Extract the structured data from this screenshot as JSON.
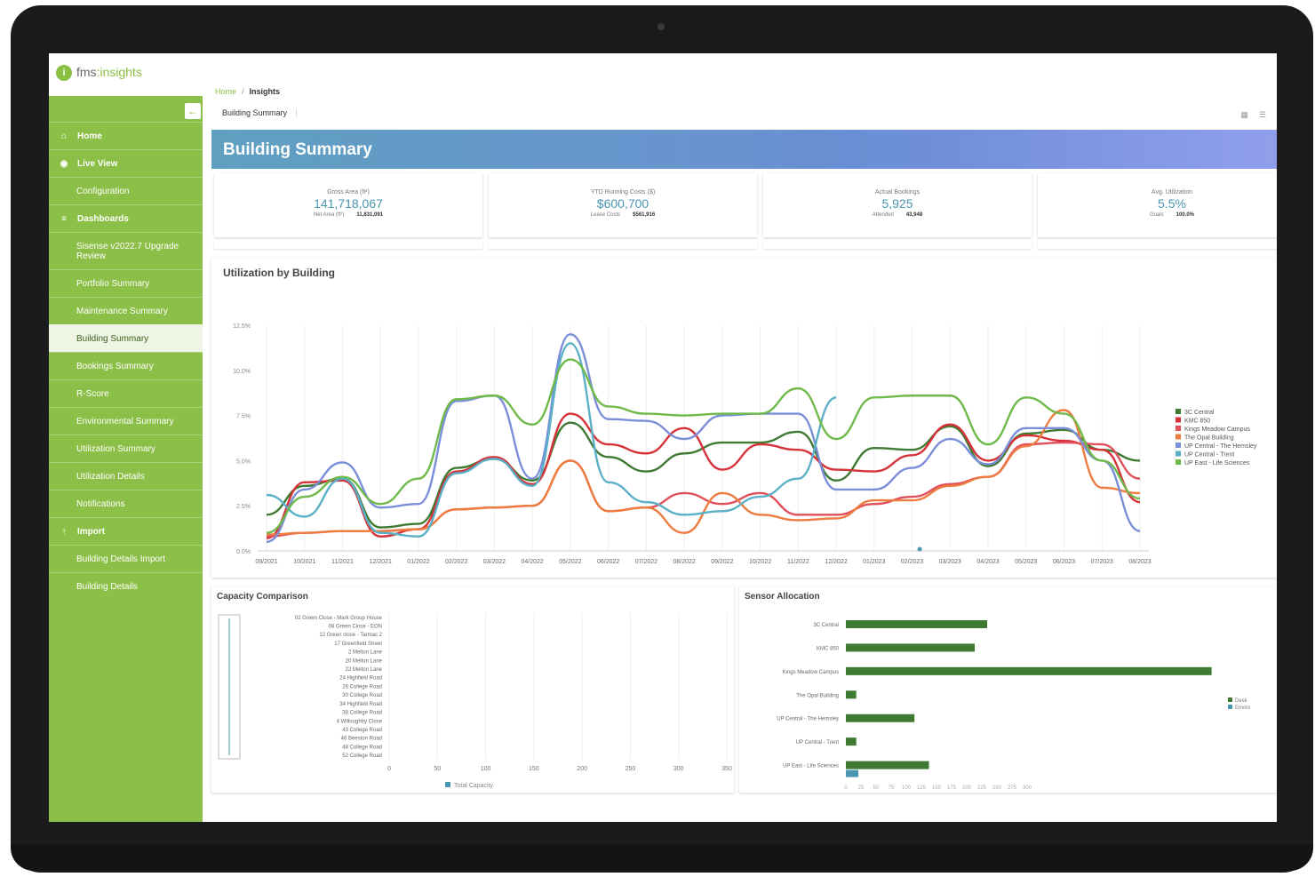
{
  "app": {
    "logo_text": "fms",
    "logo_accent": ":insights",
    "logo_mark": "i"
  },
  "sidebar": {
    "collapse_icon": "arrow-left-icon",
    "items": [
      {
        "label": "Home",
        "icon": "home-icon",
        "level": "top"
      },
      {
        "label": "Live View",
        "icon": "location-pin-icon",
        "level": "top"
      },
      {
        "label": "Configuration",
        "level": "sub"
      },
      {
        "label": "Dashboards",
        "icon": "chart-icon",
        "level": "top"
      },
      {
        "label": "Sisense v2022.7 Upgrade Review",
        "level": "sub"
      },
      {
        "label": "Portfolio Summary",
        "level": "sub"
      },
      {
        "label": "Maintenance Summary",
        "level": "sub"
      },
      {
        "label": "Building Summary",
        "level": "sub",
        "active": true
      },
      {
        "label": "Bookings Summary",
        "level": "sub"
      },
      {
        "label": "R-Score",
        "level": "sub"
      },
      {
        "label": "Environmental Summary",
        "level": "sub"
      },
      {
        "label": "Utilization Summary",
        "level": "sub"
      },
      {
        "label": "Utilization Details",
        "level": "sub"
      },
      {
        "label": "Notifications",
        "level": "sub"
      },
      {
        "label": "Import",
        "icon": "upload-icon",
        "level": "top"
      },
      {
        "label": "Building Details Import",
        "level": "sub"
      },
      {
        "label": "Building Details",
        "level": "sub"
      }
    ]
  },
  "breadcrumb": {
    "home": "Home",
    "separator": "/",
    "current": "Insights"
  },
  "tab": {
    "label": "Building Summary"
  },
  "banner": {
    "title": "Building Summary"
  },
  "kpis": [
    {
      "label": "Gross Area (ft²)",
      "value": "141,718,067",
      "sub_label": "Net Area (ft²)",
      "sub_value": "11,831,091"
    },
    {
      "label": "YTD Running Costs ($)",
      "value": "$600,700",
      "sub_label": "Lease Costs",
      "sub_value": "$561,916"
    },
    {
      "label": "Actual Bookings",
      "value": "5,925",
      "sub_label": "Attended",
      "sub_value": "43,948"
    },
    {
      "label": "Avg. Utilization",
      "value": "5.5%",
      "sub_label": "Goals",
      "sub_value": "100.0%"
    }
  ],
  "utilization_panel": {
    "title": "Utilization by Building"
  },
  "capacity_panel": {
    "title": "Capacity Comparison"
  },
  "sensor_panel": {
    "title": "Sensor Allocation"
  },
  "colors": {
    "sidebar": "#8cbf47",
    "kpi_value": "#4a95b0"
  },
  "chart_data": [
    {
      "type": "line",
      "title": "Utilization by Building",
      "x": [
        "09/2021",
        "10/2021",
        "11/2021",
        "12/2021",
        "01/2022",
        "02/2022",
        "03/2022",
        "04/2022",
        "05/2022",
        "06/2022",
        "07/2022",
        "08/2022",
        "09/2022",
        "10/2022",
        "11/2022",
        "12/2022",
        "01/2023",
        "02/2023",
        "03/2023",
        "04/2023",
        "05/2023",
        "06/2023",
        "07/2023",
        "08/2023"
      ],
      "yticks": [
        "0.0%",
        "2.5%",
        "5.0%",
        "7.5%",
        "10.0%",
        "12.5%"
      ],
      "ylim": [
        0,
        12.5
      ],
      "legend_position": "right",
      "series": [
        {
          "name": "3C Central",
          "color": "#3f7a32",
          "values": [
            2.0,
            3.6,
            4.0,
            1.3,
            1.5,
            4.6,
            5.1,
            3.9,
            7.1,
            5.2,
            4.4,
            5.4,
            6.0,
            6.0,
            6.6,
            3.9,
            5.7,
            5.6,
            6.9,
            4.7,
            6.5,
            6.7,
            5.6,
            5.0
          ]
        },
        {
          "name": "KMC 850",
          "color": "#d6323a",
          "values": [
            0.7,
            3.8,
            3.9,
            0.8,
            1.2,
            4.4,
            5.2,
            3.7,
            7.6,
            5.9,
            5.4,
            6.8,
            4.5,
            5.9,
            5.6,
            4.5,
            4.4,
            5.3,
            7.0,
            5.0,
            6.4,
            6.1,
            5.6,
            2.7
          ]
        },
        {
          "name": "Kings Meadow Campus",
          "color": "#e0505a",
          "values": [
            0.8,
            1.0,
            1.1,
            1.1,
            1.2,
            2.3,
            2.4,
            2.5,
            5.0,
            2.2,
            2.4,
            3.2,
            2.6,
            3.2,
            2.0,
            2.0,
            2.6,
            3.0,
            3.7,
            4.1,
            5.9,
            6.0,
            5.9,
            4.0
          ]
        },
        {
          "name": "The Opal Building",
          "color": "#ee7b3f",
          "values": [
            0.9,
            1.0,
            1.1,
            1.1,
            1.2,
            2.3,
            2.4,
            2.5,
            5.0,
            2.2,
            2.4,
            1.0,
            3.2,
            2.0,
            1.7,
            1.8,
            2.8,
            2.8,
            3.6,
            4.1,
            5.8,
            7.8,
            3.5,
            3.2
          ]
        },
        {
          "name": "UP Central - The Hemsley",
          "color": "#7b8fd9",
          "values": [
            0.5,
            3.4,
            4.9,
            2.4,
            2.6,
            8.3,
            8.6,
            4.0,
            12.0,
            7.3,
            7.2,
            6.2,
            7.5,
            7.6,
            7.6,
            3.4,
            3.4,
            4.6,
            6.2,
            4.8,
            6.8,
            6.8,
            5.0,
            1.1
          ]
        },
        {
          "name": "UP Central - Trent",
          "color": "#5bb0c8",
          "values": [
            3.1,
            1.9,
            4.0,
            1.0,
            0.8,
            4.3,
            5.1,
            3.6,
            11.5,
            3.8,
            2.7,
            2.0,
            2.2,
            3.0,
            4.0,
            8.5,
            null,
            null,
            null,
            null,
            null,
            null,
            null,
            null
          ]
        },
        {
          "name": "UP East - Life Sciences",
          "color": "#6fba4a",
          "values": [
            1.0,
            3.0,
            4.1,
            2.6,
            4.0,
            8.4,
            8.6,
            7.0,
            10.6,
            8.0,
            7.6,
            7.5,
            7.6,
            7.6,
            9.0,
            6.2,
            8.5,
            8.6,
            8.6,
            5.9,
            8.5,
            7.6,
            5.0,
            2.9
          ]
        }
      ]
    },
    {
      "type": "bar",
      "title": "Capacity Comparison",
      "orientation": "horizontal",
      "categories": [
        "02 Green Close - Mark Group House",
        "08 Green Close - EON",
        "12 Green close - Tarmac 2",
        "17 Greenfield Street",
        "2 Melton Lane",
        "20 Melton Lane",
        "22 Melton Lane",
        "24 Highfield Road",
        "26 College Road",
        "30 College Road",
        "34 Highfield Road",
        "38 College Road",
        "4 Willoughby Close",
        "43 College Road",
        "46 Beeston Road",
        "48 College Road",
        "52 College Road"
      ],
      "series": [
        {
          "name": "Total Capacity",
          "color": "#4a95b0",
          "values": [
            0,
            0,
            0,
            0,
            0,
            0,
            0,
            0,
            0,
            0,
            0,
            0,
            0,
            0,
            0,
            0,
            0
          ]
        }
      ],
      "xticks": [
        "0",
        "50",
        "100",
        "150",
        "200",
        "250",
        "300",
        "350"
      ],
      "xlim": [
        0,
        350
      ],
      "legend_position": "bottom"
    },
    {
      "type": "bar",
      "title": "Sensor Allocation",
      "orientation": "horizontal",
      "categories": [
        "3C Central",
        "KMC 850",
        "Kings Meadow Campus",
        "The Opal Building",
        "UP Central - The Hemsley",
        "UP Central - Trent",
        "UP East - Life Sciences"
      ],
      "series": [
        {
          "name": "Desk",
          "color": "#3f7a32",
          "values": [
            68,
            62,
            176,
            5,
            33,
            5,
            40
          ]
        },
        {
          "name": "Enviro",
          "color": "#4a95b0",
          "values": [
            0,
            0,
            0,
            0,
            0,
            0,
            6
          ]
        }
      ],
      "xticks": [
        "0",
        "25",
        "50",
        "75",
        "100",
        "125",
        "150",
        "175",
        "200",
        "225",
        "250",
        "275",
        "300"
      ],
      "xlim": [
        0,
        183
      ],
      "legend_position": "right"
    }
  ]
}
